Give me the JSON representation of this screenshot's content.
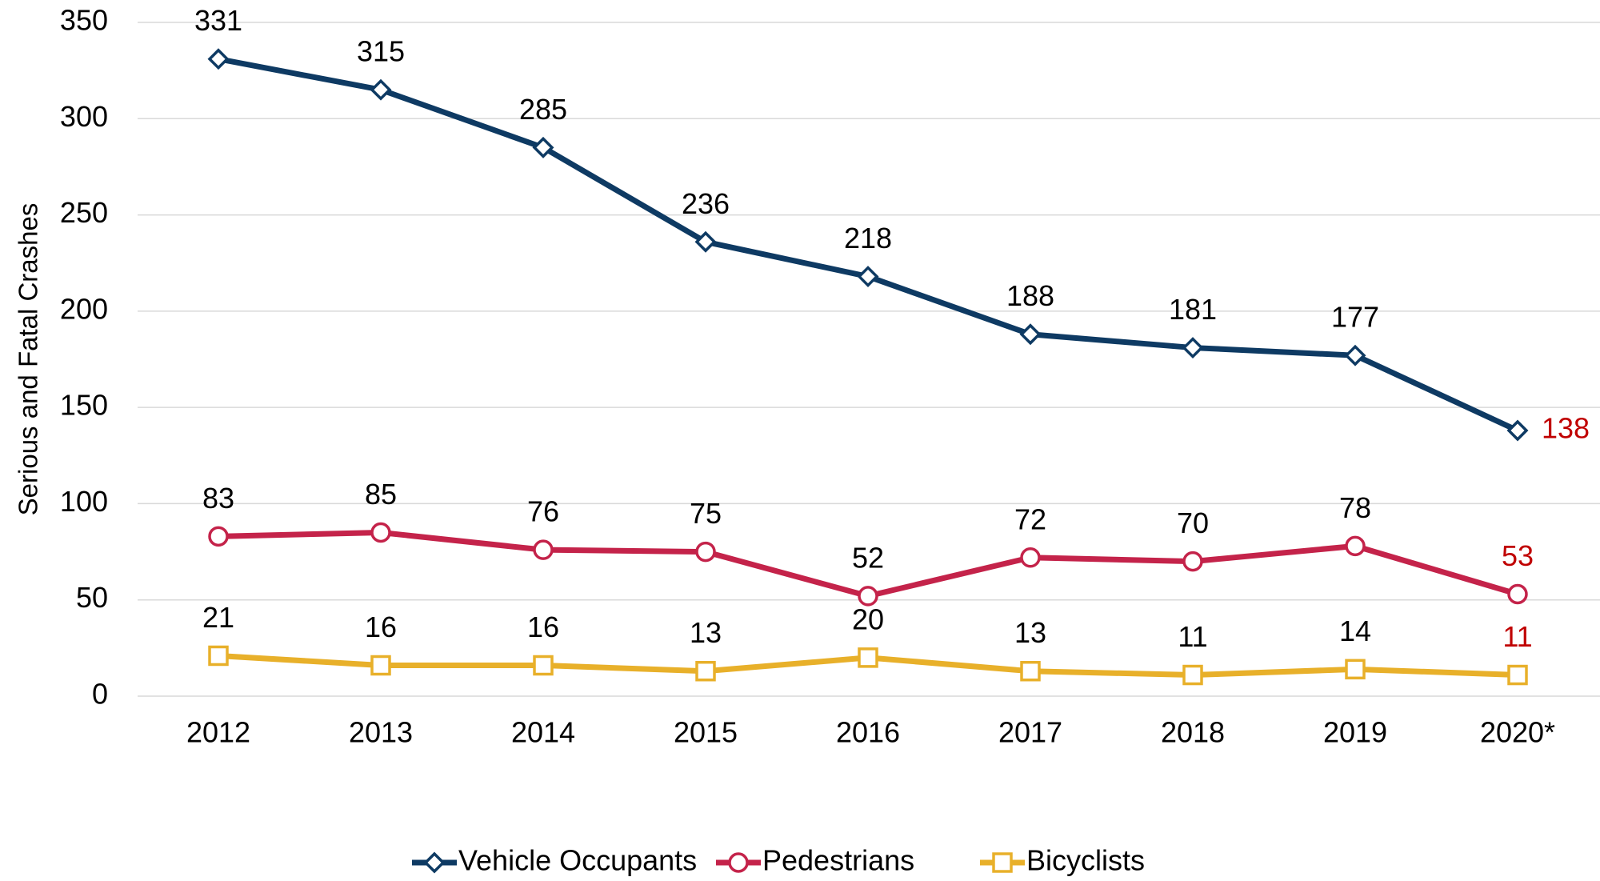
{
  "chart_data": {
    "type": "line",
    "y_label": "Serious and Fatal Crashes",
    "categories": [
      "2012",
      "2013",
      "2014",
      "2015",
      "2016",
      "2017",
      "2018",
      "2019",
      "2020*"
    ],
    "series": [
      {
        "name": "Vehicle Occupants",
        "color": "#0e3a63",
        "marker": "diamond",
        "values": [
          331,
          315,
          285,
          236,
          218,
          188,
          181,
          177,
          138
        ]
      },
      {
        "name": "Pedestrians",
        "color": "#c4234a",
        "marker": "circle",
        "values": [
          83,
          85,
          76,
          75,
          52,
          72,
          70,
          78,
          53
        ]
      },
      {
        "name": "Bicyclists",
        "color": "#e8b02a",
        "marker": "square",
        "values": [
          21,
          16,
          16,
          13,
          20,
          13,
          11,
          14,
          11
        ]
      }
    ],
    "last_label_color": "#c00000",
    "ylim": [
      0,
      350
    ],
    "yticks": [
      0,
      50,
      100,
      150,
      200,
      250,
      300,
      350
    ],
    "grid": true,
    "legend": "bottom"
  }
}
